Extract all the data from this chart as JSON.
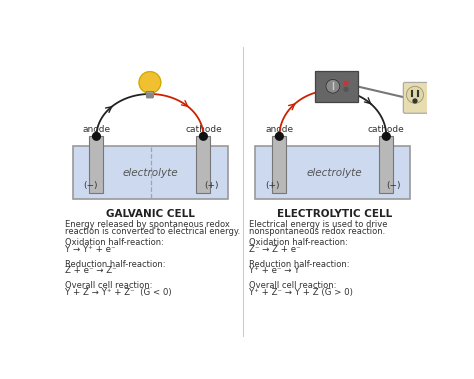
{
  "bg_color": "#ffffff",
  "liquid_color": "#ccd9ee",
  "liquid_edge": "#8899bb",
  "electrode_color": "#b8b8b8",
  "electrode_edge": "#777777",
  "wire_black": "#222222",
  "wire_red": "#cc2200",
  "dot_color": "#111111",
  "title_left": "GALVANIC CELL",
  "title_right": "ELECTROLYTIC CELL",
  "desc_left_1": "Energy released by spontaneous redox",
  "desc_left_2": "reaction is converted to electrical energy.",
  "desc_right_1": "Electrical energy is used to drive",
  "desc_right_2": "nonspontaneous redox reaction.",
  "ox_label": "Oxidation half-reaction:",
  "red_label": "Reduction half-reaction:",
  "overall_label": "Overall cell reaction:",
  "galvanic_ox": "Y → Y⁺ + e⁻",
  "galvanic_red": "Z + e⁻ → Z⁻",
  "galvanic_overall": "Y + Z → Y⁺ + Z⁻  (G < 0)",
  "electrolytic_ox": "Z⁻ → Z + e⁻",
  "electrolytic_red": "Y⁺ + e⁻ → Y",
  "electrolytic_overall": "Y⁺ + Z⁻ → Y + Z (G > 0)",
  "anode_label": "anode",
  "cathode_label": "cathode",
  "electrolyte_label": "electrolyte",
  "galvanic_anode_sign": "(−)",
  "galvanic_cathode_sign": "(+)",
  "electrolytic_anode_sign": "(+)",
  "electrolytic_cathode_sign": "(−)",
  "divider_color": "#cccccc",
  "tank_border": "#999999",
  "bulb_color": "#f0c030",
  "bulb_base": "#aaaaaa",
  "device_color": "#666666",
  "outlet_color": "#e8ddb0"
}
